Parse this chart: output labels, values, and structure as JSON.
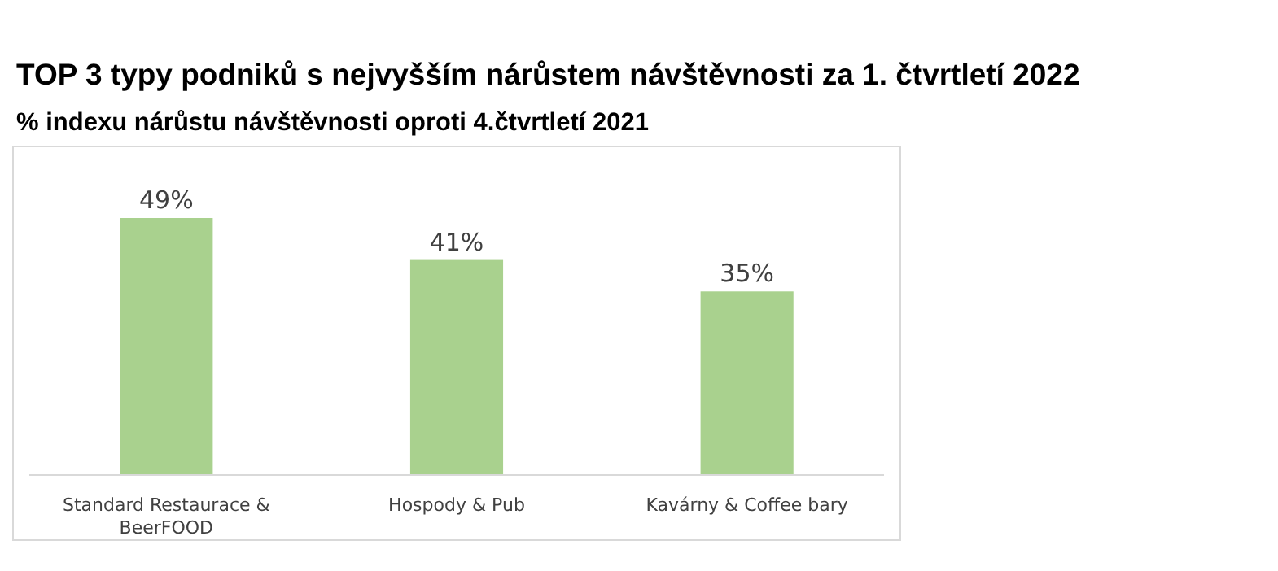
{
  "chart_data": {
    "type": "bar",
    "title": "TOP 3 typy podniků s nejvyšším nárůstem návštěvnosti za 1. čtvrtletí 2022",
    "subtitle": "% indexu nárůstu návštěvnosti oproti 4.čtvrtletí 2021",
    "categories": [
      "Standard Restaurace & BeerFOOD",
      "Hospody & Pub",
      "Kavárny & Coffee bary"
    ],
    "values": [
      49,
      41,
      35
    ],
    "value_labels": [
      "49%",
      "41%",
      "35%"
    ],
    "color": "#a9d18e"
  }
}
